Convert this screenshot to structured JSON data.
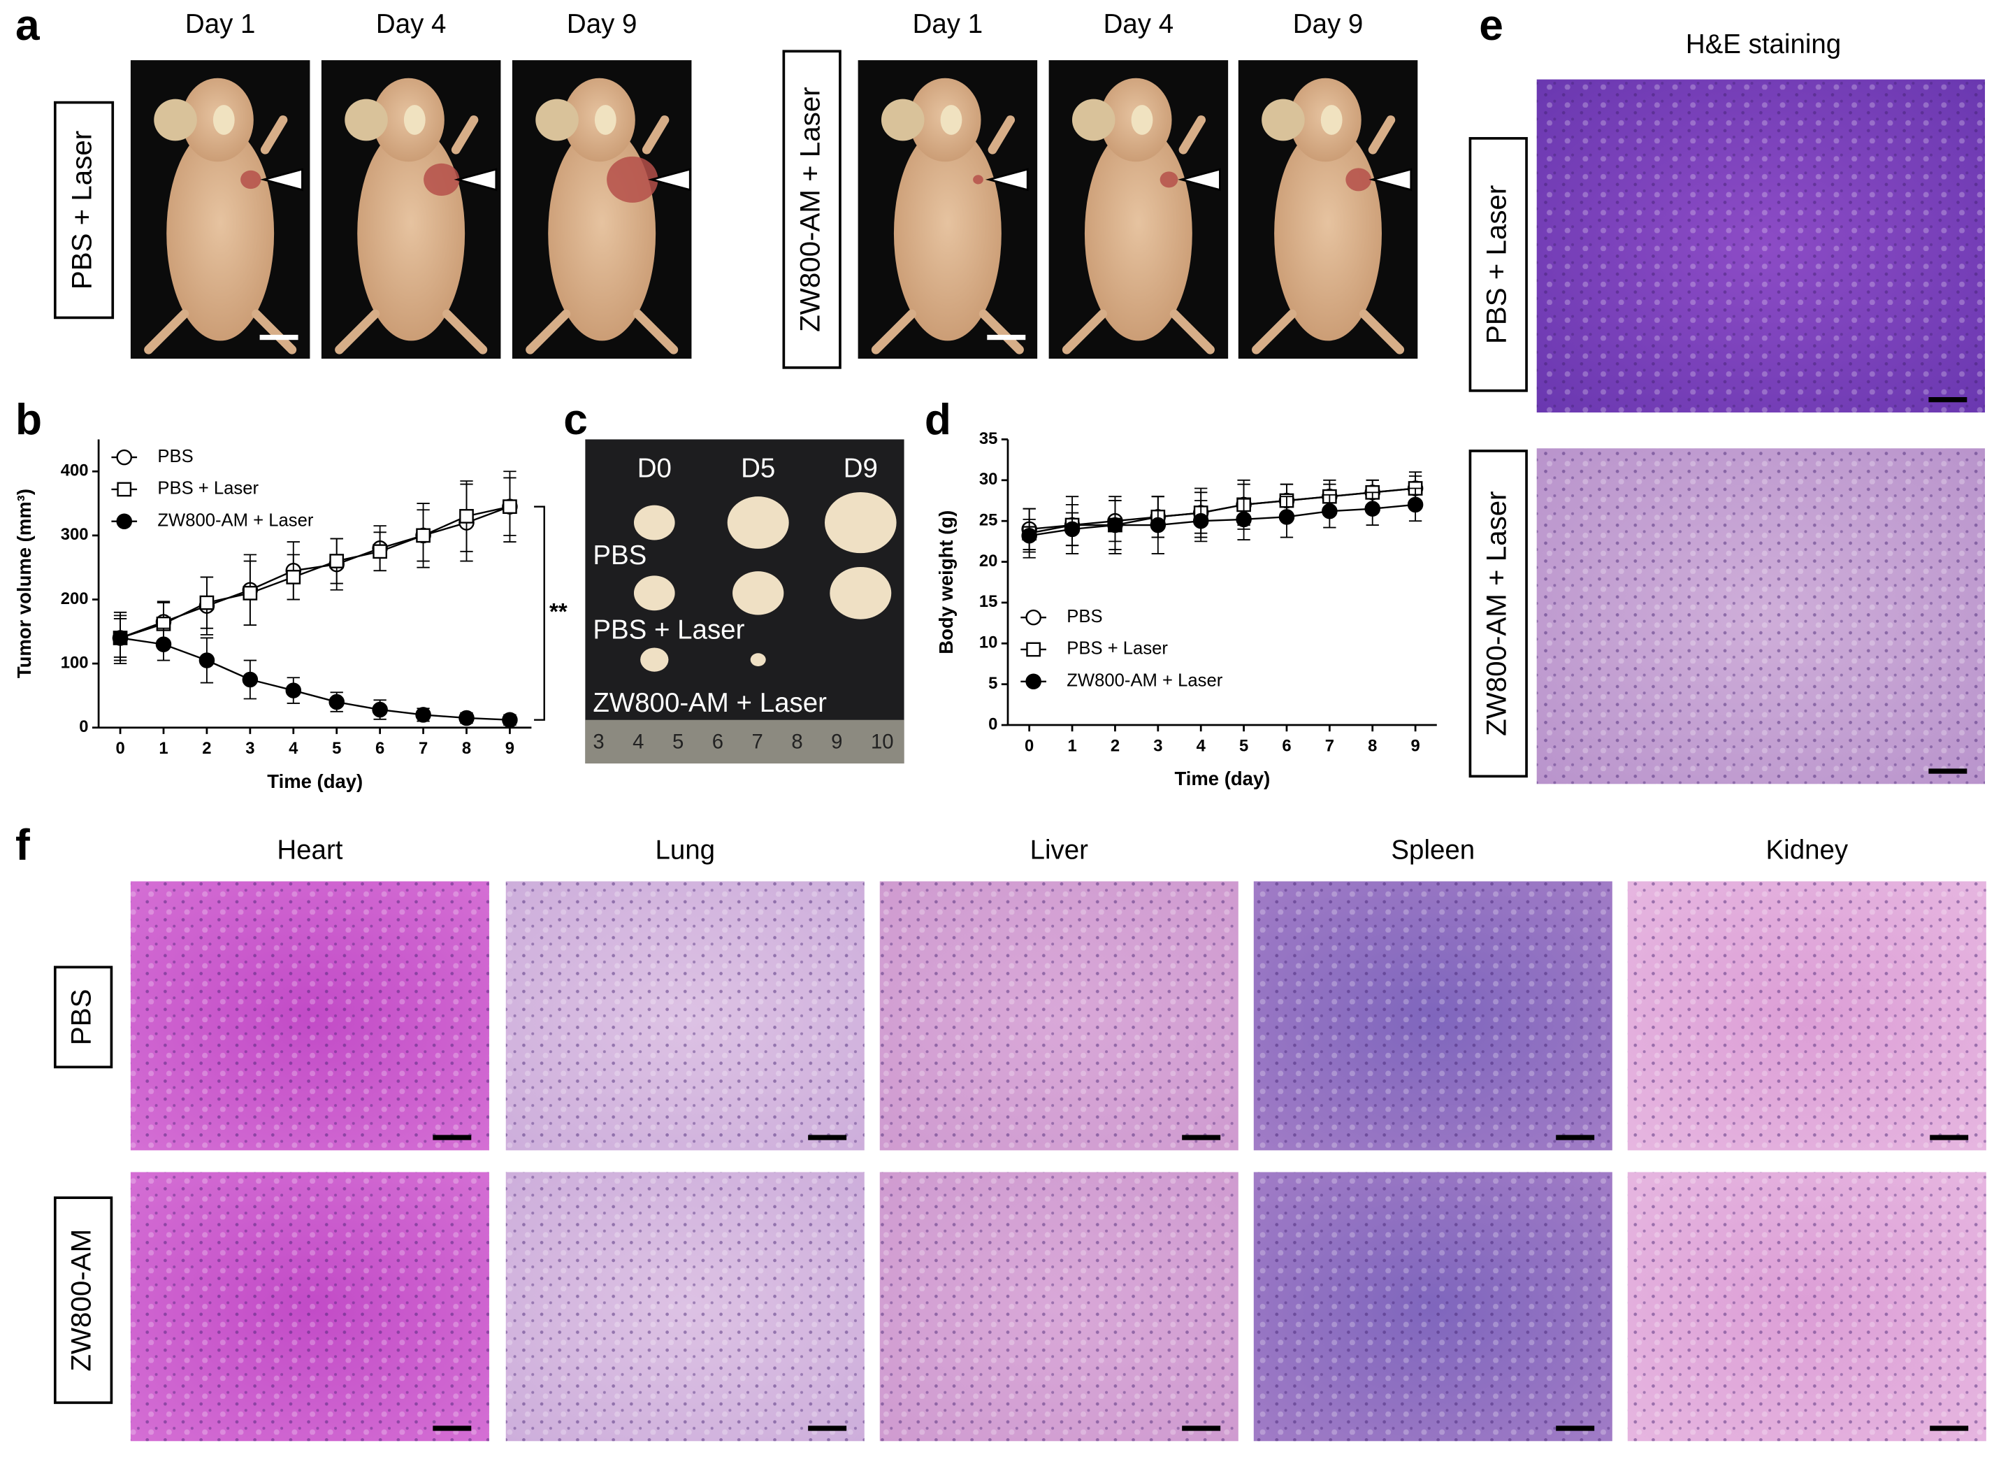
{
  "panel_labels": [
    "a",
    "b",
    "c",
    "d",
    "e",
    "f"
  ],
  "panel_a": {
    "groups": [
      {
        "label": "PBS + Laser",
        "days": [
          "Day 1",
          "Day 4",
          "Day 9"
        ]
      },
      {
        "label": "ZW800-AM + Laser",
        "days": [
          "Day 1",
          "Day 4",
          "Day 9"
        ]
      }
    ]
  },
  "panel_c": {
    "columns": [
      "D0",
      "D5",
      "D9"
    ],
    "rows": [
      "PBS",
      "PBS + Laser",
      "ZW800-AM + Laser"
    ],
    "ruler": [
      "3",
      "4",
      "5",
      "6",
      "7",
      "8",
      "9",
      "10"
    ]
  },
  "panel_e": {
    "title": "H&E staining",
    "rows": [
      "PBS + Laser",
      "ZW800-AM + Laser"
    ]
  },
  "panel_f": {
    "columns": [
      "Heart",
      "Lung",
      "Liver",
      "Spleen",
      "Kidney"
    ],
    "rows": [
      "PBS",
      "ZW800-AM"
    ]
  },
  "chart_data": [
    {
      "type": "line",
      "xlabel": "Time (day)",
      "ylabel": "Tumor volume (mm³)",
      "annotation": "**",
      "x": [
        0,
        1,
        2,
        3,
        4,
        5,
        6,
        7,
        8,
        9
      ],
      "xlim": [
        -0.5,
        9.5
      ],
      "xticks": [
        0,
        1,
        2,
        3,
        4,
        5,
        6,
        7,
        8,
        9
      ],
      "ylim": [
        0,
        450
      ],
      "yticks": [
        0,
        100,
        200,
        300,
        400
      ],
      "legend": "upper left",
      "series": [
        {
          "name": "PBS",
          "color": "#000000",
          "marker": "circle-open",
          "values": [
            140,
            165,
            190,
            215,
            245,
            255,
            280,
            300,
            320,
            345
          ],
          "errors": [
            35,
            30,
            45,
            55,
            45,
            40,
            35,
            50,
            60,
            55
          ]
        },
        {
          "name": "PBS + Laser",
          "color": "#000000",
          "marker": "square-open",
          "values": [
            140,
            162,
            195,
            210,
            235,
            260,
            275,
            300,
            330,
            345
          ],
          "errors": [
            40,
            35,
            40,
            50,
            35,
            35,
            30,
            40,
            55,
            45
          ]
        },
        {
          "name": "ZW800-AM + Laser",
          "color": "#000000",
          "marker": "circle",
          "values": [
            140,
            130,
            105,
            75,
            58,
            40,
            28,
            20,
            15,
            12
          ],
          "errors": [
            30,
            25,
            35,
            30,
            20,
            15,
            15,
            10,
            8,
            8
          ]
        }
      ]
    },
    {
      "type": "line",
      "xlabel": "Time (day)",
      "ylabel": "Body weight (g)",
      "x": [
        0,
        1,
        2,
        3,
        4,
        5,
        6,
        7,
        8,
        9
      ],
      "xlim": [
        -0.5,
        9.5
      ],
      "xticks": [
        0,
        1,
        2,
        3,
        4,
        5,
        6,
        7,
        8,
        9
      ],
      "ylim": [
        0,
        35
      ],
      "yticks": [
        0,
        5,
        10,
        15,
        20,
        25,
        30,
        35
      ],
      "legend": "lower left",
      "series": [
        {
          "name": "PBS",
          "color": "#000000",
          "marker": "circle-open",
          "values": [
            24,
            24.5,
            25,
            25.5,
            26,
            27,
            27.5,
            28,
            28.5,
            29
          ],
          "errors": [
            2.5,
            2.5,
            2.5,
            2.5,
            2.5,
            2.5,
            2,
            2,
            1.5,
            1.5
          ]
        },
        {
          "name": "PBS + Laser",
          "color": "#000000",
          "marker": "square-open",
          "values": [
            23.5,
            24.5,
            24.5,
            25.5,
            26,
            27,
            27.5,
            28,
            28.5,
            29
          ],
          "errors": [
            3,
            3.5,
            3.5,
            2.5,
            3,
            3,
            2,
            1.5,
            1.5,
            2
          ]
        },
        {
          "name": "ZW800-AM + Laser",
          "color": "#000000",
          "marker": "circle",
          "values": [
            23.2,
            24,
            24.5,
            24.5,
            25,
            25.2,
            25.5,
            26.2,
            26.5,
            27
          ],
          "errors": [
            2,
            2,
            3,
            3.5,
            2.5,
            2.5,
            2.5,
            2,
            2,
            2
          ]
        }
      ]
    }
  ]
}
